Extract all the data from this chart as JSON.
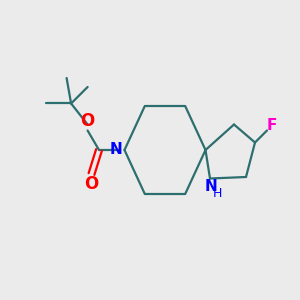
{
  "bg_color": "#ebebeb",
  "atom_colors": {
    "N": "#0000ff",
    "O": "#ff0000",
    "F": "#ff00cc",
    "bond": "#2d6e6e"
  },
  "figsize": [
    3.0,
    3.0
  ],
  "dpi": 100
}
